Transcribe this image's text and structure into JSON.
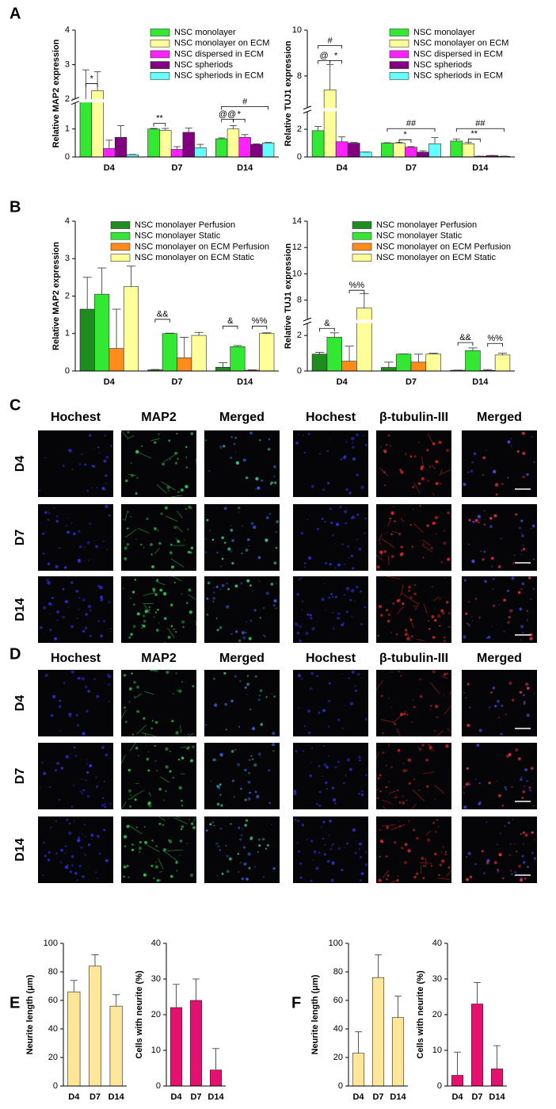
{
  "panel_labels": [
    "A",
    "B",
    "C",
    "D",
    "E",
    "F"
  ],
  "chart_data": [
    {
      "type": "bar",
      "ylabel": "Relative MAP2 expression",
      "categories": [
        "D4",
        "D7",
        "D14"
      ],
      "ylim": [
        0,
        4
      ],
      "yticks": [
        0,
        1,
        2,
        3,
        4
      ],
      "ybreak": [
        1.95,
        2
      ],
      "legend": "top-right",
      "series": [
        {
          "name": "NSC monolayer",
          "color": "#33e833",
          "values": [
            1.97,
            1.0,
            0.65
          ],
          "errors": [
            0.88,
            0.02,
            0.03
          ]
        },
        {
          "name": "NSC monolayer on ECM",
          "color": "#ffff99",
          "values": [
            2.25,
            0.95,
            1.0
          ],
          "errors": [
            0.55,
            0.07,
            0.12
          ]
        },
        {
          "name": "NSC dispersed in ECM",
          "color": "#ff22ff",
          "values": [
            0.3,
            0.27,
            0.7
          ],
          "errors": [
            0.3,
            0.1,
            0.1
          ]
        },
        {
          "name": "NSC spheriods",
          "color": "#800080",
          "values": [
            0.7,
            0.88,
            0.45
          ],
          "errors": [
            0.42,
            0.15,
            0.02
          ]
        },
        {
          "name": "NSC spheriods in ECM",
          "color": "#66ffff",
          "values": [
            0.08,
            0.33,
            0.5
          ],
          "errors": [
            0.01,
            0.12,
            0.02
          ]
        }
      ],
      "annotations": [
        {
          "text": "*",
          "category": 0,
          "from": 0,
          "to": 1,
          "y": 2.45
        },
        {
          "text": "**",
          "category": 1,
          "from": 0,
          "to": 1,
          "y": 1.2
        },
        {
          "text": "@@",
          "category": 2,
          "from": 0,
          "to": 1,
          "y": 1.35
        },
        {
          "text": "*",
          "category": 2,
          "from": 1,
          "to": 2,
          "y": 1.35
        },
        {
          "text": "#",
          "category": 2,
          "from": 0,
          "to": 4,
          "y": 1.8
        }
      ]
    },
    {
      "type": "bar",
      "ylabel": "Relative TUJ1 expression",
      "categories": [
        "D4",
        "D7",
        "D14"
      ],
      "ylim": [
        0,
        10
      ],
      "yticks": [
        0,
        2,
        8,
        10
      ],
      "ybreak": [
        3.3,
        6.6
      ],
      "legend": "top-right",
      "series": [
        {
          "name": "NSC monolayer",
          "color": "#33e833",
          "values": [
            1.9,
            1.0,
            1.15
          ],
          "errors": [
            0.3,
            0.03,
            0.15
          ]
        },
        {
          "name": "NSC monolayer on ECM",
          "color": "#ffff99",
          "values": [
            7.4,
            1.0,
            0.95
          ],
          "errors": [
            1.1,
            0.05,
            0.1
          ]
        },
        {
          "name": "NSC dispersed in ECM",
          "color": "#ff22ff",
          "values": [
            1.1,
            0.7,
            0.05
          ],
          "errors": [
            0.35,
            0.05,
            0.01
          ]
        },
        {
          "name": "NSC spheriods",
          "color": "#800080",
          "values": [
            1.0,
            0.35,
            0.1
          ],
          "errors": [
            0.05,
            0.1,
            0.01
          ]
        },
        {
          "name": "NSC spheriods in ECM",
          "color": "#66ffff",
          "values": [
            0.35,
            0.95,
            0.05
          ],
          "errors": [
            0.01,
            0.45,
            0.01
          ]
        }
      ],
      "annotations": [
        {
          "text": "@",
          "category": 0,
          "from": 0,
          "to": 1,
          "y": 8.67
        },
        {
          "text": "*",
          "category": 0,
          "from": 1,
          "to": 2,
          "y": 8.67
        },
        {
          "text": "#",
          "category": 0,
          "from": 0,
          "to": 2,
          "y": 9.33
        },
        {
          "text": "##",
          "category": 1,
          "from": 0,
          "to": 4,
          "y": 2.05
        },
        {
          "text": "*",
          "category": 1,
          "from": 1,
          "to": 2,
          "y": 1.25
        },
        {
          "text": "##",
          "category": 2,
          "from": 0,
          "to": 4,
          "y": 2.05
        },
        {
          "text": "**",
          "category": 2,
          "from": 1,
          "to": 2,
          "y": 1.3
        }
      ]
    },
    {
      "type": "bar",
      "ylabel": "Relative MAP2 expression",
      "categories": [
        "D4",
        "D7",
        "D14"
      ],
      "ylim": [
        0,
        4
      ],
      "yticks": [
        0,
        1,
        2,
        3,
        4
      ],
      "legend": "top",
      "series": [
        {
          "name": "NSC monolayer Perfusion",
          "color": "#1e8c1e",
          "values": [
            1.65,
            0.03,
            0.1
          ],
          "errors": [
            0.85,
            0.01,
            0.12
          ]
        },
        {
          "name": "NSC monolayer Static",
          "color": "#33e833",
          "values": [
            2.05,
            1.0,
            0.65
          ],
          "errors": [
            0.7,
            0.01,
            0.03
          ]
        },
        {
          "name": "NSC monolayer on ECM Perfusion",
          "color": "#ff8c1a",
          "values": [
            0.6,
            0.35,
            0.02
          ],
          "errors": [
            1.05,
            0.55,
            0.01
          ]
        },
        {
          "name": "NSC monolayer on ECM Static",
          "color": "#ffff99",
          "values": [
            2.25,
            0.95,
            1.0
          ],
          "errors": [
            0.55,
            0.08,
            0.02
          ]
        }
      ],
      "annotations": [
        {
          "text": "&&",
          "category": 1,
          "from": 0,
          "to": 1,
          "y": 1.38
        },
        {
          "text": "&",
          "category": 2,
          "from": 0,
          "to": 1,
          "y": 1.2
        },
        {
          "text": "%%",
          "category": 2,
          "from": 2,
          "to": 3,
          "y": 1.2
        }
      ]
    },
    {
      "type": "bar",
      "ylabel": "Relative TUJ1 expression",
      "categories": [
        "D4",
        "D7",
        "D14"
      ],
      "ylim": [
        0,
        14
      ],
      "yticks": [
        0,
        2,
        8,
        10,
        12,
        14
      ],
      "ybreak": [
        2.7,
        6.5
      ],
      "legend": "top",
      "series": [
        {
          "name": "NSC monolayer Perfusion",
          "color": "#1e8c1e",
          "values": [
            0.95,
            0.2,
            0.04
          ],
          "errors": [
            0.1,
            0.3,
            0.01
          ]
        },
        {
          "name": "NSC monolayer Static",
          "color": "#33e833",
          "values": [
            1.9,
            0.95,
            1.15
          ],
          "errors": [
            0.25,
            0.01,
            0.15
          ]
        },
        {
          "name": "NSC monolayer on ECM Perfusion",
          "color": "#ff8c1a",
          "values": [
            0.55,
            0.5,
            0.03
          ],
          "errors": [
            0.85,
            0.45,
            0.05
          ]
        },
        {
          "name": "NSC monolayer on ECM Static",
          "color": "#ffff99",
          "values": [
            7.4,
            0.95,
            0.9
          ],
          "errors": [
            1.1,
            0.05,
            0.1
          ]
        }
      ],
      "annotations": [
        {
          "text": "&",
          "category": 0,
          "from": 0,
          "to": 1,
          "y": 2.4
        },
        {
          "text": "%%",
          "category": 0,
          "from": 2,
          "to": 3,
          "y": 8.75
        },
        {
          "text": "&&",
          "category": 2,
          "from": 0,
          "to": 1,
          "y": 1.6
        },
        {
          "text": "%%",
          "category": 2,
          "from": 2,
          "to": 3,
          "y": 1.55
        }
      ]
    },
    {
      "type": "bar",
      "ylabel": "Neurite length (μm)",
      "categories": [
        "D4",
        "D7",
        "D14"
      ],
      "ylim": [
        0,
        100
      ],
      "yticks": [
        0,
        20,
        40,
        60,
        80,
        100
      ],
      "color": "#ffe699",
      "values": [
        66,
        84,
        56
      ],
      "errors": [
        8,
        8,
        8
      ]
    },
    {
      "type": "bar",
      "ylabel": "Cells with neurite (%)",
      "categories": [
        "D4",
        "D7",
        "D14"
      ],
      "ylim": [
        0,
        40
      ],
      "yticks": [
        0,
        10,
        20,
        30,
        40
      ],
      "color": "#e6106e",
      "values": [
        22,
        24,
        4.5
      ],
      "errors": [
        6.5,
        6,
        6
      ]
    },
    {
      "type": "bar",
      "ylabel": "Neurite length (μm)",
      "categories": [
        "D4",
        "D7",
        "D14"
      ],
      "ylim": [
        0,
        100
      ],
      "yticks": [
        0,
        20,
        40,
        60,
        80,
        100
      ],
      "color": "#ffe699",
      "values": [
        23,
        76,
        48
      ],
      "errors": [
        15,
        16,
        15
      ]
    },
    {
      "type": "bar",
      "ylabel": "Cells with neurite (%)",
      "categories": [
        "D4",
        "D7",
        "D14"
      ],
      "ylim": [
        0,
        40
      ],
      "yticks": [
        0,
        10,
        20,
        30,
        40
      ],
      "color": "#e6106e",
      "values": [
        3,
        23,
        4.8
      ],
      "errors": [
        6.5,
        6,
        6.5
      ]
    }
  ],
  "micrographs": [
    {
      "headers": [
        {
          "text": "Hochest",
          "color": "#1a1ad0"
        },
        {
          "text": "MAP2",
          "color": "#1fa85a"
        },
        {
          "text": "Merged",
          "color": "#33cccc"
        },
        {
          "text": "Hochest",
          "color": "#1a1ad0"
        },
        {
          "text": "β-tubulin-III",
          "color": "#dd1111"
        },
        {
          "text": "Merged",
          "color": "#f0a020"
        }
      ],
      "rows": [
        "D4",
        "D7",
        "D14"
      ]
    },
    {
      "headers": [
        {
          "text": "Hochest",
          "color": "#1a1ad0"
        },
        {
          "text": "MAP2",
          "color": "#1fa85a"
        },
        {
          "text": "Merged",
          "color": "#33cccc"
        },
        {
          "text": "Hochest",
          "color": "#1a1ad0"
        },
        {
          "text": "β-tubulin-III",
          "color": "#dd1111"
        },
        {
          "text": "Merged",
          "color": "#f0a020"
        }
      ],
      "rows": [
        "D4",
        "D7",
        "D14"
      ]
    }
  ]
}
